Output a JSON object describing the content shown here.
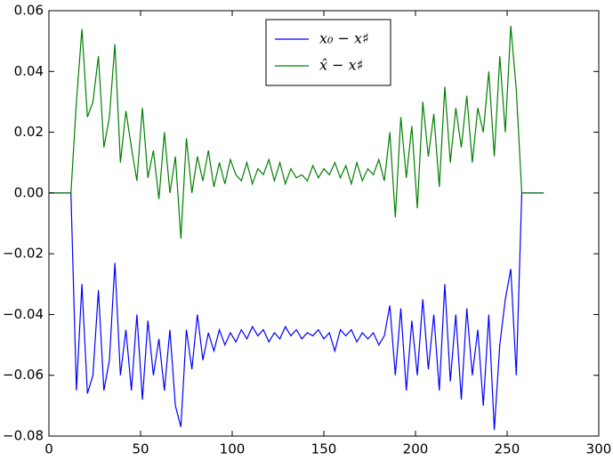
{
  "chart_data": {
    "type": "line",
    "x": [
      0,
      3,
      6,
      9,
      12,
      15,
      18,
      21,
      24,
      27,
      30,
      33,
      36,
      39,
      42,
      45,
      48,
      51,
      54,
      57,
      60,
      63,
      66,
      69,
      72,
      75,
      78,
      81,
      84,
      87,
      90,
      93,
      96,
      99,
      102,
      105,
      108,
      111,
      114,
      117,
      120,
      123,
      126,
      129,
      132,
      135,
      138,
      141,
      144,
      147,
      150,
      153,
      156,
      159,
      162,
      165,
      168,
      171,
      174,
      177,
      180,
      183,
      186,
      189,
      192,
      195,
      198,
      201,
      204,
      207,
      210,
      213,
      216,
      219,
      222,
      225,
      228,
      231,
      234,
      237,
      240,
      243,
      246,
      249,
      252,
      255,
      258,
      261,
      264,
      267,
      270
    ],
    "series": [
      {
        "name": "x₀ − x♯",
        "color": "#0000ff",
        "values": [
          0,
          0,
          0,
          0,
          0,
          -0.065,
          -0.03,
          -0.066,
          -0.06,
          -0.032,
          -0.065,
          -0.055,
          -0.023,
          -0.06,
          -0.045,
          -0.065,
          -0.04,
          -0.068,
          -0.042,
          -0.06,
          -0.048,
          -0.065,
          -0.045,
          -0.07,
          -0.077,
          -0.045,
          -0.058,
          -0.04,
          -0.055,
          -0.046,
          -0.052,
          -0.045,
          -0.05,
          -0.046,
          -0.049,
          -0.045,
          -0.048,
          -0.044,
          -0.047,
          -0.045,
          -0.049,
          -0.046,
          -0.048,
          -0.044,
          -0.047,
          -0.045,
          -0.048,
          -0.046,
          -0.047,
          -0.045,
          -0.048,
          -0.046,
          -0.052,
          -0.045,
          -0.047,
          -0.045,
          -0.049,
          -0.046,
          -0.048,
          -0.046,
          -0.05,
          -0.047,
          -0.037,
          -0.06,
          -0.038,
          -0.065,
          -0.042,
          -0.06,
          -0.035,
          -0.058,
          -0.04,
          -0.065,
          -0.03,
          -0.062,
          -0.04,
          -0.068,
          -0.038,
          -0.06,
          -0.045,
          -0.07,
          -0.04,
          -0.078,
          -0.05,
          -0.035,
          -0.025,
          -0.06,
          0,
          0,
          0,
          0,
          0
        ]
      },
      {
        "name": "x̂ − x♯",
        "color": "#008000",
        "values": [
          0,
          0,
          0,
          0,
          0,
          0.03,
          0.054,
          0.025,
          0.03,
          0.045,
          0.015,
          0.025,
          0.049,
          0.01,
          0.027,
          0.015,
          0.004,
          0.028,
          0.005,
          0.014,
          -0.002,
          0.02,
          0,
          0.012,
          -0.015,
          0.018,
          0,
          0.012,
          0.004,
          0.014,
          0.002,
          0.01,
          0.003,
          0.011,
          0.006,
          0.004,
          0.01,
          0.003,
          0.008,
          0.006,
          0.011,
          0.004,
          0.01,
          0.003,
          0.008,
          0.005,
          0.006,
          0.004,
          0.009,
          0.005,
          0.008,
          0.006,
          0.01,
          0.005,
          0.009,
          0.003,
          0.01,
          0.004,
          0.008,
          0.006,
          0.011,
          0.004,
          0.02,
          -0.008,
          0.025,
          0.005,
          0.022,
          -0.005,
          0.03,
          0.012,
          0.026,
          0.002,
          0.035,
          0.01,
          0.028,
          0.015,
          0.032,
          0.01,
          0.028,
          0.02,
          0.04,
          0.012,
          0.045,
          0.02,
          0.055,
          0.034,
          0,
          0,
          0,
          0,
          0
        ]
      }
    ],
    "xlim": [
      0,
      300
    ],
    "xticks": [
      0,
      50,
      100,
      150,
      200,
      250,
      300
    ],
    "ylim": [
      -0.08,
      0.06
    ],
    "yticks": [
      {
        "value": -0.08,
        "label": "−0.08"
      },
      {
        "value": -0.06,
        "label": "−0.06"
      },
      {
        "value": -0.04,
        "label": "−0.04"
      },
      {
        "value": -0.02,
        "label": "−0.02"
      },
      {
        "value": 0,
        "label": "0.00"
      },
      0.02,
      0.04,
      0.06
    ],
    "grid": false,
    "legend": "upper center"
  }
}
